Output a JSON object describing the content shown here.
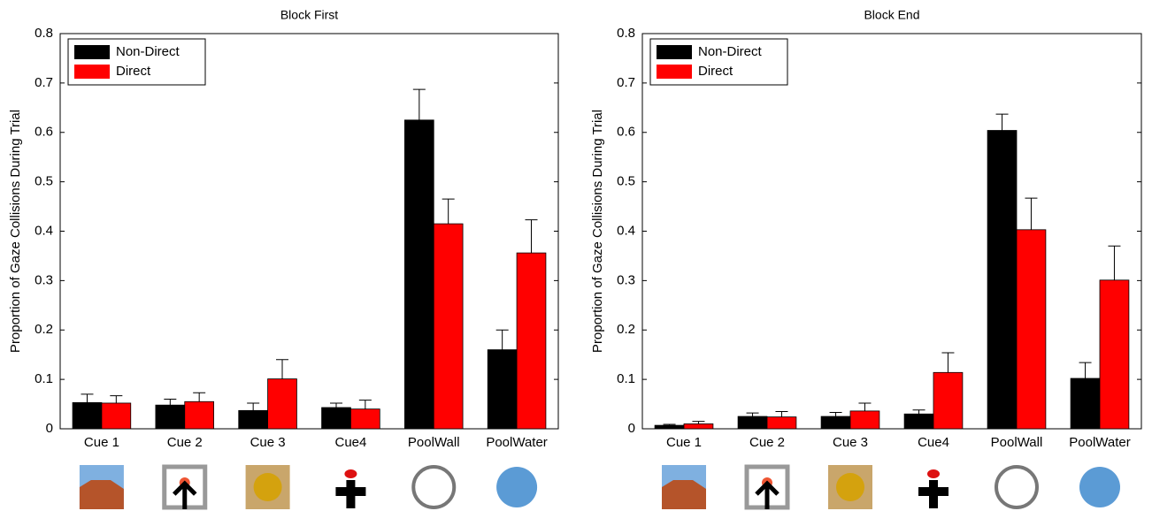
{
  "chart_data": [
    {
      "type": "bar",
      "title": "Block First",
      "ylabel": "Proportion of Gaze Collisions During Trial",
      "categories": [
        "Cue 1",
        "Cue 2",
        "Cue 3",
        "Cue4",
        "PoolWall",
        "PoolWater"
      ],
      "series": [
        {
          "name": "Non-Direct",
          "color": "#000000",
          "values": [
            0.053,
            0.048,
            0.037,
            0.043,
            0.625,
            0.16
          ],
          "errors": [
            0.017,
            0.012,
            0.015,
            0.009,
            0.062,
            0.04
          ]
        },
        {
          "name": "Direct",
          "color": "#ff0000",
          "values": [
            0.052,
            0.055,
            0.101,
            0.04,
            0.415,
            0.356
          ],
          "errors": [
            0.015,
            0.018,
            0.039,
            0.018,
            0.05,
            0.067
          ]
        }
      ],
      "ylim": [
        0,
        0.8
      ],
      "yticks": [
        0,
        0.1,
        0.2,
        0.3,
        0.4,
        0.5,
        0.6,
        0.7,
        0.8
      ],
      "legend": "upper left"
    },
    {
      "type": "bar",
      "title": "Block End",
      "ylabel": "Proportion of Gaze Collisions During Trial",
      "categories": [
        "Cue 1",
        "Cue 2",
        "Cue 3",
        "Cue4",
        "PoolWall",
        "PoolWater"
      ],
      "series": [
        {
          "name": "Non-Direct",
          "color": "#000000",
          "values": [
            0.007,
            0.025,
            0.025,
            0.03,
            0.604,
            0.102
          ],
          "errors": [
            0.002,
            0.007,
            0.008,
            0.008,
            0.033,
            0.032
          ]
        },
        {
          "name": "Direct",
          "color": "#ff0000",
          "values": [
            0.01,
            0.024,
            0.036,
            0.114,
            0.403,
            0.301
          ],
          "errors": [
            0.005,
            0.011,
            0.016,
            0.04,
            0.064,
            0.069
          ]
        }
      ],
      "ylim": [
        0,
        0.8
      ],
      "yticks": [
        0,
        0.1,
        0.2,
        0.3,
        0.4,
        0.5,
        0.6,
        0.7,
        0.8
      ],
      "legend": "upper left"
    }
  ]
}
